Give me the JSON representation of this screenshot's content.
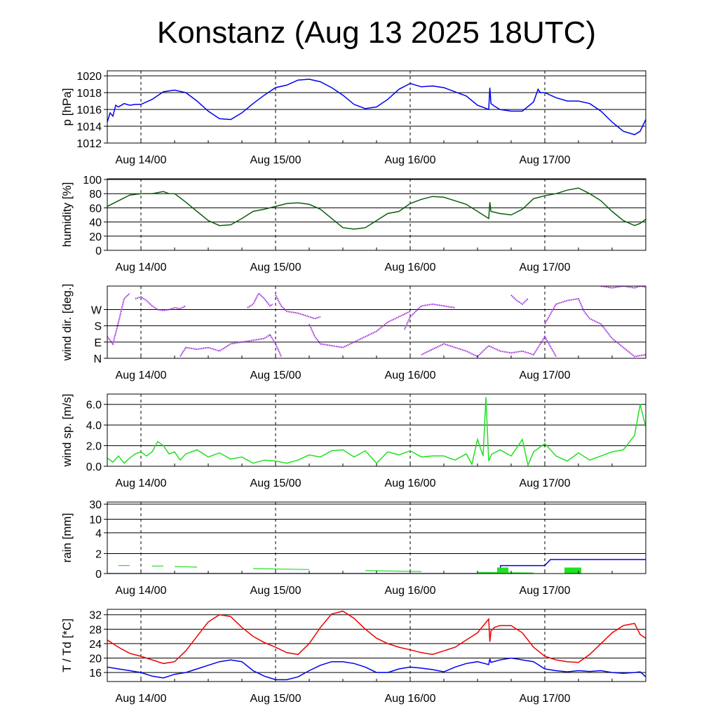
{
  "title": "Konstanz (Aug 13 2025 18UTC)",
  "x_tick_labels": [
    "Aug 14/00",
    "Aug 15/00",
    "Aug 16/00",
    "Aug 17/00"
  ],
  "colors": {
    "pressure": "#0000ee",
    "humidity": "#0b5e0b",
    "wind_dir": "#9a1fd6",
    "wind_speed": "#22e022",
    "rain_cumulative": "#0000ee",
    "rain_bars": "#22e022",
    "temperature": "#ee0000",
    "dewpoint": "#0000ee"
  },
  "chart_data": [
    {
      "id": "pressure",
      "type": "line",
      "ylabel": "p [hPa]",
      "ylim": [
        1012,
        1020.6
      ],
      "yticks": [
        1012,
        1014,
        1016,
        1018,
        1020
      ],
      "ytick_labels": [
        "1012",
        "1014",
        "1016",
        "1018",
        "1020"
      ],
      "hgrid": [
        1014,
        1016,
        1018,
        1020
      ],
      "x_range_hours": [
        -6,
        90
      ],
      "series": [
        {
          "color_key": "pressure",
          "x": [
            -6,
            -5.5,
            -5,
            -4.5,
            -4,
            -3,
            -2,
            -1,
            0,
            2,
            4,
            6,
            8,
            10,
            12,
            14,
            16,
            18,
            20,
            22,
            24,
            26,
            28,
            30,
            32,
            34,
            36,
            38,
            40,
            42,
            44,
            46,
            48,
            50,
            52,
            54,
            56,
            58,
            60,
            62,
            62.2,
            62.4,
            63,
            64,
            66,
            68,
            70,
            70.8,
            71.2,
            72,
            74,
            76,
            78,
            80,
            82,
            84,
            86,
            88,
            89,
            90
          ],
          "y": [
            1014.5,
            1015.6,
            1015.2,
            1016.5,
            1016.3,
            1016.7,
            1016.5,
            1016.6,
            1016.6,
            1017.2,
            1018.1,
            1018.3,
            1018,
            1017,
            1015.8,
            1014.9,
            1014.8,
            1015.6,
            1016.7,
            1017.7,
            1018.6,
            1018.9,
            1019.5,
            1019.6,
            1019.3,
            1018.6,
            1017.7,
            1016.6,
            1016.1,
            1016.3,
            1017.2,
            1018.4,
            1019.1,
            1018.7,
            1018.8,
            1018.6,
            1018.1,
            1017.6,
            1016.5,
            1016,
            1018.6,
            1016.7,
            1016.4,
            1016,
            1015.8,
            1015.8,
            1016.9,
            1018.4,
            1018,
            1018,
            1017.4,
            1017,
            1017,
            1016.7,
            1015.8,
            1014.5,
            1013.4,
            1013,
            1013.4,
            1014.8
          ]
        }
      ]
    },
    {
      "id": "humidity",
      "type": "line",
      "ylabel": "humidity [%]",
      "ylim": [
        0,
        101
      ],
      "yticks": [
        0,
        20,
        40,
        60,
        80,
        100
      ],
      "ytick_labels": [
        "0",
        "20",
        "40",
        "60",
        "80",
        "100"
      ],
      "hgrid": [
        20,
        40,
        60,
        80,
        100
      ],
      "x_range_hours": [
        -6,
        90
      ],
      "series": [
        {
          "color_key": "humidity",
          "x": [
            -6,
            -4,
            -2,
            0,
            2,
            4,
            5,
            6,
            8,
            10,
            12,
            14,
            16,
            18,
            20,
            22,
            24,
            26,
            28,
            30,
            32,
            34,
            36,
            38,
            40,
            42,
            44,
            46,
            48,
            50,
            52,
            54,
            56,
            58,
            60,
            62,
            62.2,
            62.4,
            64,
            66,
            68,
            70,
            72,
            74,
            76,
            78,
            80,
            82,
            84,
            86,
            88,
            89,
            90
          ],
          "y": [
            62,
            70,
            78,
            80,
            80,
            83,
            80,
            80,
            68,
            55,
            42,
            35,
            36,
            45,
            55,
            58,
            62,
            66,
            67,
            65,
            58,
            45,
            32,
            30,
            32,
            42,
            52,
            55,
            66,
            72,
            76,
            75,
            70,
            65,
            55,
            45,
            68,
            55,
            52,
            50,
            58,
            73,
            77,
            80,
            85,
            88,
            80,
            70,
            55,
            42,
            35,
            38,
            44
          ]
        }
      ]
    },
    {
      "id": "wind_direction",
      "type": "scatter",
      "ylabel": "wind dir. [deg.]",
      "ylim": [
        0,
        400
      ],
      "yticks": [
        0,
        90,
        180,
        270
      ],
      "ytick_labels": [
        "N",
        "E",
        "S",
        "W"
      ],
      "hgrid": [
        90,
        180,
        270
      ],
      "x_range_hours": [
        -6,
        90
      ],
      "series": [
        {
          "color_key": "wind_dir",
          "segments": [
            {
              "x": [
                -6,
                -5,
                -4,
                -3,
                -2
              ],
              "y": [
                120,
                80,
                200,
                330,
                360
              ]
            },
            {
              "x": [
                -1,
                0,
                1,
                2,
                3,
                4,
                5,
                6,
                7,
                8
              ],
              "y": [
                330,
                340,
                320,
                290,
                270,
                265,
                270,
                280,
                275,
                290
              ]
            },
            {
              "x": [
                7,
                8,
                10,
                12,
                14,
                16,
                18,
                20,
                22,
                23,
                24,
                25
              ],
              "y": [
                10,
                60,
                50,
                60,
                40,
                80,
                90,
                100,
                110,
                130,
                80,
                10
              ]
            },
            {
              "x": [
                19,
                20,
                21,
                22,
                23,
                23.5
              ],
              "y": [
                280,
                300,
                360,
                330,
                290,
                300
              ]
            },
            {
              "x": [
                24,
                25,
                26,
                28,
                30,
                31,
                32
              ],
              "y": [
                350,
                290,
                260,
                250,
                230,
                220,
                230
              ]
            },
            {
              "x": [
                30,
                31,
                32,
                34,
                36,
                38,
                40,
                42,
                44,
                46,
                48
              ],
              "y": [
                190,
                120,
                80,
                70,
                60,
                90,
                120,
                150,
                200,
                230,
                260
              ]
            },
            {
              "x": [
                47,
                48,
                50,
                52,
                54,
                56
              ],
              "y": [
                160,
                230,
                290,
                300,
                290,
                280
              ]
            },
            {
              "x": [
                50,
                52,
                54,
                56,
                58,
                60,
                62,
                64,
                66,
                68,
                70,
                72,
                74
              ],
              "y": [
                20,
                50,
                80,
                60,
                40,
                10,
                70,
                40,
                30,
                40,
                20,
                120,
                10
              ]
            },
            {
              "x": [
                66,
                67,
                68,
                69
              ],
              "y": [
                350,
                320,
                300,
                330
              ]
            },
            {
              "x": [
                72,
                74,
                76,
                78,
                79,
                80,
                82,
                84,
                86,
                88,
                90
              ],
              "y": [
                190,
                300,
                320,
                330,
                260,
                220,
                190,
                110,
                60,
                10,
                20
              ]
            },
            {
              "x": [
                82,
                84,
                86,
                88,
                89,
                90
              ],
              "y": [
                400,
                390,
                400,
                390,
                400,
                395
              ]
            }
          ]
        }
      ]
    },
    {
      "id": "wind_speed",
      "type": "line",
      "ylabel": "wind sp. [m/s]",
      "ylim": [
        0,
        7
      ],
      "yticks": [
        0,
        2,
        4,
        6
      ],
      "ytick_labels": [
        "0.0",
        "2.0",
        "4.0",
        "6.0"
      ],
      "hgrid": [
        2,
        4,
        6
      ],
      "x_range_hours": [
        -6,
        90
      ],
      "series": [
        {
          "color_key": "wind_speed",
          "x": [
            -6,
            -5,
            -4,
            -3,
            -2,
            -1,
            0,
            1,
            2,
            3,
            4,
            5,
            6,
            7,
            8,
            10,
            12,
            14,
            16,
            18,
            20,
            22,
            24,
            26,
            28,
            30,
            32,
            34,
            36,
            38,
            40,
            42,
            44,
            46,
            48,
            50,
            52,
            54,
            56,
            58,
            59,
            60,
            61,
            61.5,
            62,
            62.3,
            62.6,
            63,
            64,
            66,
            68,
            69,
            70,
            71,
            72,
            74,
            76,
            78,
            80,
            82,
            84,
            86,
            88,
            89,
            90
          ],
          "y": [
            0.8,
            0.4,
            1.0,
            0.3,
            0.8,
            1.2,
            1.4,
            1.0,
            1.4,
            2.4,
            2.0,
            1.2,
            1.4,
            0.6,
            1.2,
            1.6,
            0.9,
            1.3,
            0.7,
            0.9,
            0.3,
            0.6,
            0.5,
            0.3,
            0.6,
            1.1,
            0.9,
            1.5,
            1.6,
            0.9,
            1.5,
            0.3,
            1.4,
            1.1,
            1.5,
            0.9,
            1.0,
            1.0,
            0.6,
            1.2,
            0.2,
            2.6,
            1.0,
            6.7,
            0.5,
            0.9,
            1.2,
            1.3,
            1.6,
            1.0,
            2.6,
            0.1,
            1.4,
            1.8,
            2.2,
            1.0,
            0.5,
            1.3,
            0.6,
            1.0,
            1.4,
            1.6,
            3.0,
            6.0,
            3.8
          ]
        }
      ]
    },
    {
      "id": "rain",
      "type": "bar",
      "ylabel": "rain [mm]",
      "ylim": [
        0,
        30
      ],
      "yticks": [
        0,
        2,
        4,
        10,
        30
      ],
      "ytick_labels": [
        "0",
        "2",
        "4",
        "10",
        "30"
      ],
      "hgrid": [
        2,
        4,
        10,
        30
      ],
      "x_range_hours": [
        -6,
        90
      ],
      "series": [
        {
          "color_key": "rain_cumulative",
          "x": [
            -6,
            64,
            64.1,
            72,
            73,
            90
          ],
          "y": [
            0,
            0,
            0.8,
            0.8,
            1.4,
            1.4
          ]
        },
        {
          "color_key": "rain_bars",
          "bars": [
            {
              "x": [
                63.5,
                65.5
              ],
              "y": 0.6
            },
            {
              "x": [
                75.5,
                78.5
              ],
              "y": 0.6
            }
          ],
          "ensemble_trace": {
            "x": [
              -4,
              -2,
              2,
              4,
              6,
              10,
              20,
              30,
              40,
              50,
              60,
              70
            ],
            "y": [
              0.8,
              0.8,
              0.75,
              0.75,
              0.7,
              0.65,
              0.5,
              0.4,
              0.3,
              0.2,
              0.12,
              0.05
            ]
          }
        }
      ]
    },
    {
      "id": "temperature",
      "type": "line",
      "ylabel": "T / Td [*C]",
      "ylim": [
        13.5,
        33.5
      ],
      "yticks": [
        16,
        20,
        24,
        28,
        32
      ],
      "ytick_labels": [
        "16",
        "20",
        "24",
        "28",
        "32"
      ],
      "hgrid": [
        16,
        20,
        24,
        28,
        32
      ],
      "x_range_hours": [
        -6,
        90
      ],
      "series": [
        {
          "color_key": "temperature",
          "x": [
            -6,
            -4,
            -2,
            0,
            2,
            4,
            6,
            8,
            10,
            12,
            14,
            16,
            18,
            20,
            22,
            24,
            26,
            28,
            30,
            32,
            34,
            36,
            38,
            40,
            42,
            44,
            46,
            48,
            50,
            52,
            54,
            56,
            58,
            60,
            62,
            62.2,
            62.4,
            63,
            64,
            66,
            68,
            70,
            72,
            74,
            76,
            78,
            80,
            82,
            84,
            86,
            88,
            89,
            90
          ],
          "y": [
            25,
            23,
            21.3,
            20.5,
            19.5,
            18.5,
            19,
            22,
            26,
            30,
            32,
            31.5,
            28.5,
            26,
            24.3,
            23,
            21.5,
            21,
            24,
            28.5,
            32.2,
            33,
            31,
            28,
            25.5,
            24,
            23,
            22.3,
            21.5,
            21,
            22,
            23,
            25,
            27,
            30.8,
            24.5,
            27.5,
            28.5,
            29,
            29,
            27,
            23,
            20.5,
            19.5,
            19,
            18.8,
            21,
            24,
            27,
            29,
            29.6,
            26.5,
            25.5
          ]
        },
        {
          "color_key": "dewpoint",
          "x": [
            -6,
            -4,
            -2,
            0,
            2,
            4,
            6,
            8,
            10,
            12,
            14,
            16,
            18,
            20,
            22,
            24,
            26,
            28,
            30,
            32,
            34,
            36,
            38,
            40,
            42,
            44,
            46,
            48,
            50,
            52,
            54,
            56,
            58,
            60,
            62,
            62.2,
            62.4,
            64,
            66,
            68,
            70,
            72,
            74,
            76,
            78,
            80,
            82,
            84,
            86,
            88,
            89,
            90
          ],
          "y": [
            17.5,
            17,
            16.5,
            16,
            15,
            14.5,
            15.5,
            16,
            17,
            18,
            19,
            19.5,
            19,
            16.5,
            15,
            14,
            14,
            14.8,
            16.5,
            18,
            19,
            19,
            18.5,
            17.5,
            16,
            16,
            17,
            17.5,
            17.2,
            16.8,
            16.2,
            17.5,
            18.5,
            19,
            18.2,
            19.8,
            18.8,
            19.5,
            20,
            19.5,
            19,
            17,
            16.5,
            16.2,
            16.5,
            16.3,
            16.5,
            16,
            15.8,
            16,
            16.2,
            14.8
          ]
        }
      ]
    }
  ]
}
